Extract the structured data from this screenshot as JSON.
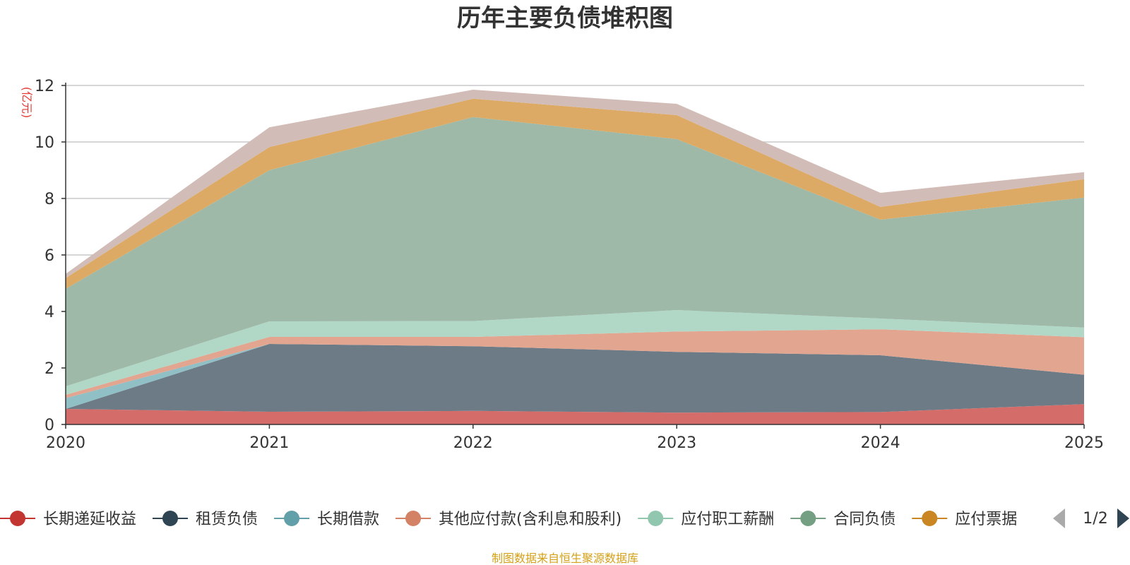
{
  "colors": {
    "grid": "#c8c8c8",
    "axis": "#333333",
    "ylabel": "#e53935",
    "source": "#d4a017",
    "pager_active": "#2f4554",
    "pager_inactive": "#aaaaaa"
  },
  "chart_data": {
    "type": "area",
    "stacked": true,
    "title": "历年主要负债堆积图",
    "ylabel": "(亿元)",
    "xlabel": "",
    "x": [
      "2020",
      "2021",
      "2022",
      "2023",
      "2024",
      "2025"
    ],
    "ylim": [
      0,
      12
    ],
    "yticks": [
      "0",
      "2",
      "4",
      "6",
      "8",
      "10",
      "12"
    ],
    "grid": true,
    "legend_position": "bottom",
    "series": [
      {
        "name": "长期递延收益",
        "color": "#c23531",
        "fill": "#d46c6a",
        "values": [
          0.55,
          0.45,
          0.48,
          0.42,
          0.44,
          0.72
        ]
      },
      {
        "name": "租赁负债",
        "color": "#2f4554",
        "fill": "#6d7b86",
        "values": [
          0.0,
          2.4,
          2.29,
          2.15,
          2.01,
          1.04
        ]
      },
      {
        "name": "长期借款",
        "color": "#61a0a8",
        "fill": "#90bfc5",
        "values": [
          0.38,
          0.0,
          0.0,
          0.0,
          0.0,
          0.0
        ]
      },
      {
        "name": "其他应付款(含利息和股利)",
        "color": "#d48265",
        "fill": "#e2a590",
        "values": [
          0.12,
          0.25,
          0.33,
          0.72,
          0.92,
          1.33
        ]
      },
      {
        "name": "应付职工薪酬",
        "color": "#91c7ae",
        "fill": "#b1d8c6",
        "values": [
          0.3,
          0.55,
          0.56,
          0.76,
          0.38,
          0.34
        ]
      },
      {
        "name": "合同负债",
        "color": "#749f83",
        "fill": "#9eb9a8",
        "values": [
          3.45,
          5.35,
          7.22,
          6.05,
          3.5,
          4.6
        ]
      },
      {
        "name": "应付票据",
        "color": "#ca8622",
        "fill": "#dcaa64",
        "values": [
          0.38,
          0.82,
          0.65,
          0.85,
          0.45,
          0.65
        ]
      },
      {
        "name": "",
        "color": "#bda29a",
        "fill": "#d1bcb7",
        "values": [
          0.15,
          0.7,
          0.32,
          0.4,
          0.5,
          0.25
        ]
      }
    ]
  },
  "legend": {
    "items": [
      "长期递延收益",
      "租赁负债",
      "长期借款",
      "其他应付款(含利息和股利)",
      "应付职工薪酬",
      "合同负债",
      "应付票据"
    ],
    "page_label": "1/2",
    "prev_icon": "triangle-left-icon",
    "next_icon": "triangle-right-icon"
  },
  "footer": {
    "source": "制图数据来自恒生聚源数据库"
  }
}
